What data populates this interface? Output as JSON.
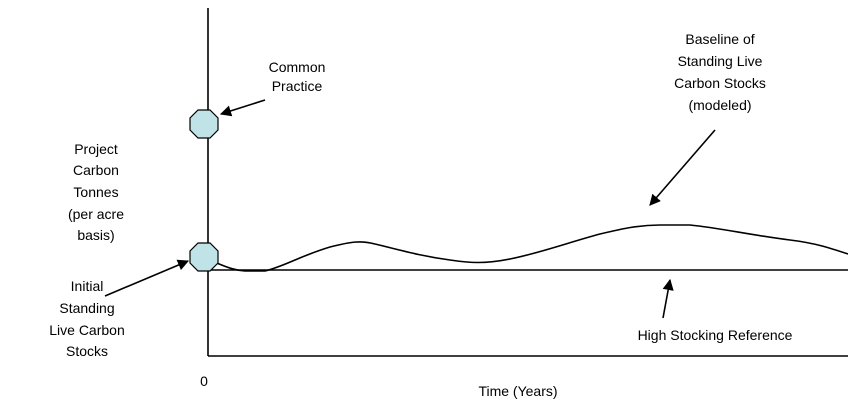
{
  "labels": {
    "common_practice": [
      "Common",
      "Practice"
    ],
    "y_axis": [
      "Project",
      "Carbon",
      "Tonnes",
      "(per acre",
      "basis)"
    ],
    "initial": [
      "Initial",
      "Standing",
      "Live Carbon",
      "Stocks"
    ],
    "baseline": [
      "Baseline",
      "of",
      "Standing Live",
      "Carbon Stocks",
      "(modeled)"
    ],
    "reference": [
      "High Stocking Reference"
    ],
    "origin": [
      "0"
    ],
    "x_axis": [
      "Time (Years)"
    ]
  }
}
